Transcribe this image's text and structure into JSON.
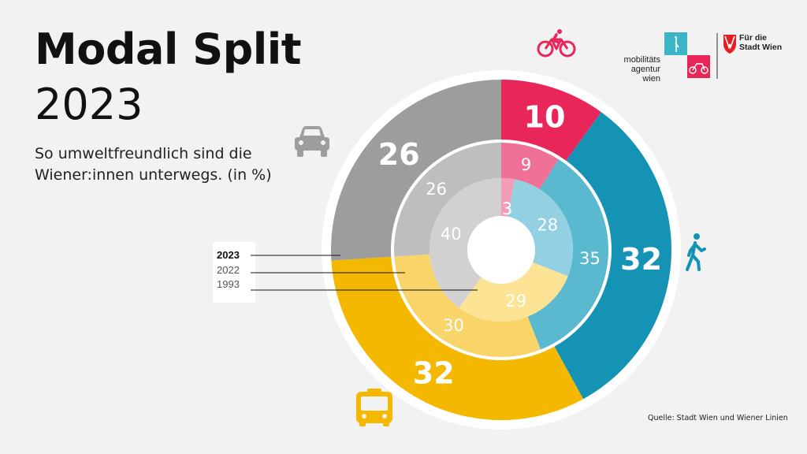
{
  "header": {
    "title": "Modal Split",
    "year": "2023",
    "subtitle": "So umweltfreundlich sind die Wiener:innen unterwegs. (in %)"
  },
  "source": "Quelle: Stadt Wien und Wiener Linien",
  "logos": {
    "mobility_agency": [
      "mobilitäts",
      "agentur",
      "wien"
    ],
    "city": [
      "Für die",
      "Stadt Wien"
    ]
  },
  "chart_data": {
    "type": "pie",
    "variant": "concentric-donut",
    "unit": "%",
    "categories": [
      "Rad",
      "Zu Fuß",
      "Öffis",
      "Auto"
    ],
    "icons": [
      "bicycle-icon",
      "pedestrian-icon",
      "bus-icon",
      "car-icon"
    ],
    "series": [
      {
        "name": "2023",
        "values": [
          10,
          32,
          32,
          26
        ]
      },
      {
        "name": "2022",
        "values": [
          9,
          35,
          30,
          26
        ]
      },
      {
        "name": "1993",
        "values": [
          3,
          28,
          29,
          40
        ]
      }
    ],
    "colors": {
      "2023": [
        "#e8265a",
        "#1593b5",
        "#f5b800",
        "#9d9d9d"
      ],
      "2022": [
        "#ef7198",
        "#5ab8cf",
        "#f9d468",
        "#bebebe"
      ],
      "1993": [
        "#f49bb5",
        "#93d1e2",
        "#fde394",
        "#d1d1d1"
      ]
    },
    "legend": [
      "2023",
      "2022",
      "1993"
    ],
    "legend_placement": "left"
  }
}
